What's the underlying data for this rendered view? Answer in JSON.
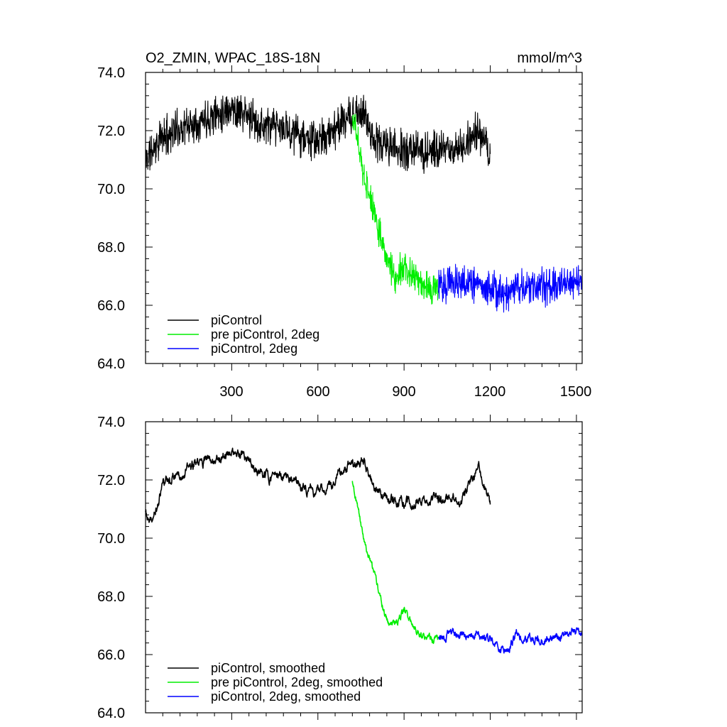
{
  "chart_data": [
    {
      "type": "line",
      "title": "O2_ZMIN, WPAC_18S-18N",
      "units": "mmol/m^3",
      "xlim": [
        0,
        1520
      ],
      "ylim": [
        64,
        74
      ],
      "x_ticks": [
        300,
        600,
        900,
        1200,
        1500
      ],
      "y_ticks": [
        "64.0",
        "66.0",
        "68.0",
        "70.0",
        "72.0",
        "74.0"
      ],
      "legend": {
        "placement": "bottom-left",
        "entries": [
          "piControl",
          "pre piControl, 2deg",
          "piControl, 2deg"
        ]
      },
      "series": [
        {
          "name": "piControl",
          "color": "#000000",
          "x_range": [
            0,
            1200
          ],
          "trend": [
            [
              0,
              71.0
            ],
            [
              60,
              71.8
            ],
            [
              100,
              72.0
            ],
            [
              200,
              72.4
            ],
            [
              300,
              72.8
            ],
            [
              400,
              72.2
            ],
            [
              500,
              72.0
            ],
            [
              600,
              71.6
            ],
            [
              700,
              72.4
            ],
            [
              760,
              72.6
            ],
            [
              800,
              71.6
            ],
            [
              900,
              71.3
            ],
            [
              1000,
              71.3
            ],
            [
              1100,
              71.4
            ],
            [
              1150,
              72.0
            ],
            [
              1200,
              71.2
            ]
          ],
          "noise": 0.5,
          "smooth_noise": 0.3
        },
        {
          "name": "pre piControl, 2deg",
          "color": "#00ee00",
          "x_range": [
            720,
            1020
          ],
          "trend": [
            [
              720,
              72.5
            ],
            [
              740,
              71.6
            ],
            [
              760,
              70.4
            ],
            [
              800,
              69.0
            ],
            [
              840,
              67.6
            ],
            [
              870,
              66.9
            ],
            [
              900,
              67.4
            ],
            [
              940,
              67.0
            ],
            [
              980,
              66.6
            ],
            [
              1020,
              66.6
            ]
          ],
          "noise": 0.45,
          "smooth_noise": 0.25
        },
        {
          "name": "piControl, 2deg",
          "color": "#0000ff",
          "x_range": [
            1020,
            1520
          ],
          "trend": [
            [
              1020,
              66.6
            ],
            [
              1100,
              66.8
            ],
            [
              1200,
              66.6
            ],
            [
              1250,
              66.3
            ],
            [
              1300,
              66.7
            ],
            [
              1400,
              66.6
            ],
            [
              1500,
              66.8
            ],
            [
              1520,
              66.8
            ]
          ],
          "noise": 0.45,
          "smooth_noise": 0.25
        }
      ]
    },
    {
      "type": "line",
      "title": "",
      "units": "",
      "xlim": [
        0,
        1520
      ],
      "ylim": [
        64,
        74
      ],
      "x_ticks": [],
      "y_ticks": [
        "64.0",
        "66.0",
        "68.0",
        "70.0",
        "72.0",
        "74.0"
      ],
      "legend": {
        "placement": "bottom-left",
        "entries": [
          "piControl, smoothed",
          "pre piControl, 2deg, smoothed",
          "piControl, 2deg, smoothed"
        ]
      },
      "series": [
        {
          "name": "piControl, smoothed",
          "color": "#000000",
          "x_range": [
            0,
            1200
          ],
          "trend": [
            [
              0,
              70.9
            ],
            [
              15,
              70.4
            ],
            [
              40,
              71.0
            ],
            [
              60,
              71.9
            ],
            [
              100,
              72.2
            ],
            [
              200,
              72.6
            ],
            [
              300,
              73.0
            ],
            [
              400,
              72.2
            ],
            [
              500,
              72.0
            ],
            [
              600,
              71.5
            ],
            [
              700,
              72.4
            ],
            [
              760,
              72.7
            ],
            [
              800,
              71.6
            ],
            [
              900,
              71.2
            ],
            [
              1000,
              71.3
            ],
            [
              1100,
              71.3
            ],
            [
              1160,
              72.4
            ],
            [
              1200,
              71.3
            ]
          ],
          "noise": 0.5,
          "smooth_noise": 0.3
        },
        {
          "name": "pre piControl, 2deg, smoothed",
          "color": "#00ee00",
          "x_range": [
            720,
            1020
          ],
          "trend": [
            [
              720,
              72.0
            ],
            [
              740,
              71.0
            ],
            [
              760,
              69.9
            ],
            [
              800,
              68.6
            ],
            [
              840,
              67.2
            ],
            [
              870,
              66.9
            ],
            [
              900,
              67.6
            ],
            [
              940,
              66.9
            ],
            [
              980,
              66.5
            ],
            [
              1020,
              66.5
            ]
          ],
          "noise": 0.45,
          "smooth_noise": 0.25
        },
        {
          "name": "piControl, 2deg, smoothed",
          "color": "#0000ff",
          "x_range": [
            1020,
            1520
          ],
          "trend": [
            [
              1020,
              66.6
            ],
            [
              1100,
              66.8
            ],
            [
              1200,
              66.5
            ],
            [
              1250,
              66.2
            ],
            [
              1300,
              66.7
            ],
            [
              1400,
              66.5
            ],
            [
              1500,
              66.8
            ],
            [
              1520,
              66.9
            ]
          ],
          "noise": 0.45,
          "smooth_noise": 0.25
        }
      ]
    }
  ]
}
